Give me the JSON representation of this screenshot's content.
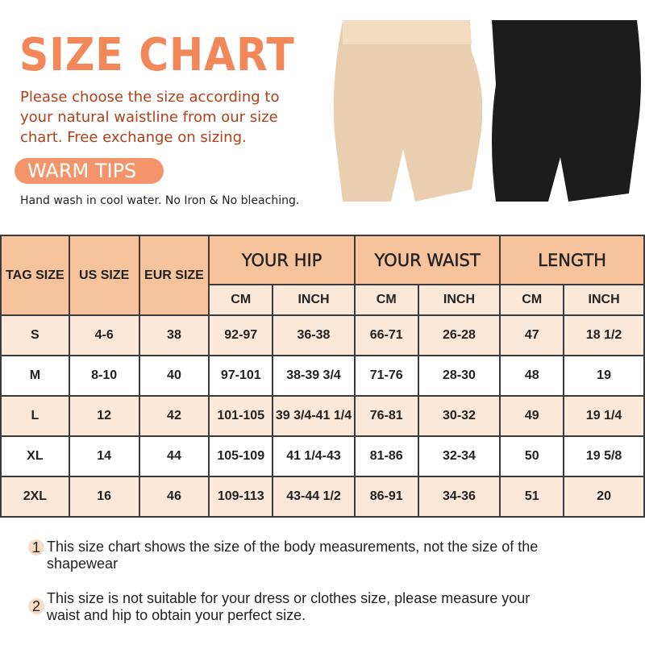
{
  "header": {
    "title": "SIZE CHART",
    "intro": "Please choose the size according to your natural waistline from our size chart. Free exchange on sizing.",
    "tips_label": "WARM TIPS",
    "care": "Hand wash in cool water. No Iron & No bleaching."
  },
  "colors": {
    "accent": "#f2875a",
    "header_bg": "#f7c39c",
    "row_alt": "#fce8d9",
    "text_brown": "#b0401a"
  },
  "table": {
    "headers": {
      "tag": "TAG SIZE",
      "us": "US SIZE",
      "eur": "EUR SIZE",
      "hip": "YOUR HIP",
      "waist": "YOUR WAIST",
      "length": "LENGTH",
      "cm": "CM",
      "inch": "INCH"
    },
    "rows": [
      [
        "S",
        "4-6",
        "38",
        "92-97",
        "36-38",
        "66-71",
        "26-28",
        "47",
        "18 1/2"
      ],
      [
        "M",
        "8-10",
        "40",
        "97-101",
        "38-39 3/4",
        "71-76",
        "28-30",
        "48",
        "19"
      ],
      [
        "L",
        "12",
        "42",
        "101-105",
        "39 3/4-41 1/4",
        "76-81",
        "30-32",
        "49",
        "19 1/4"
      ],
      [
        "XL",
        "14",
        "44",
        "105-109",
        "41 1/4-43",
        "81-86",
        "32-34",
        "50",
        "19 5/8"
      ],
      [
        "2XL",
        "16",
        "46",
        "109-113",
        "43-44 1/2",
        "86-91",
        "34-36",
        "51",
        "20"
      ]
    ]
  },
  "notes": [
    {
      "num": "1",
      "text": "This size chart shows the size of the body measurements, not the size of the shapewear"
    },
    {
      "num": "2",
      "text": "This size is not suitable for your dress or clothes size, please measure your waist and hip to obtain your perfect size."
    }
  ]
}
